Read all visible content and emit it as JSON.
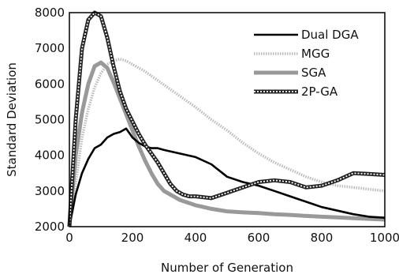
{
  "chart_data": {
    "type": "line",
    "title": "",
    "xlabel": "Number of Generation",
    "ylabel": "Standard Deviation",
    "xlim": [
      0,
      1000
    ],
    "ylim": [
      2000,
      8000
    ],
    "xticks": [
      0,
      200,
      400,
      600,
      800,
      1000
    ],
    "yticks": [
      2000,
      3000,
      4000,
      5000,
      6000,
      7000,
      8000
    ],
    "grid": false,
    "legend": "top-right",
    "series": [
      {
        "name": "Dual DGA",
        "style": "solid-black",
        "color": "#000000",
        "x": [
          0,
          20,
          40,
          60,
          80,
          100,
          120,
          140,
          160,
          180,
          200,
          220,
          240,
          260,
          280,
          300,
          350,
          400,
          450,
          500,
          550,
          600,
          650,
          700,
          750,
          800,
          850,
          900,
          950,
          1000
        ],
        "y": [
          2000,
          2900,
          3500,
          3900,
          4200,
          4300,
          4500,
          4600,
          4650,
          4750,
          4500,
          4350,
          4250,
          4200,
          4200,
          4150,
          4050,
          3950,
          3750,
          3400,
          3250,
          3150,
          3000,
          2850,
          2700,
          2550,
          2450,
          2350,
          2280,
          2250
        ]
      },
      {
        "name": "MGG",
        "style": "dotted-gray",
        "color": "#bbbbbb",
        "x": [
          0,
          20,
          40,
          60,
          80,
          100,
          120,
          140,
          160,
          180,
          200,
          240,
          280,
          320,
          360,
          400,
          450,
          500,
          550,
          600,
          650,
          700,
          750,
          800,
          850,
          900,
          950,
          1000
        ],
        "y": [
          2000,
          3200,
          4500,
          5300,
          5900,
          6300,
          6550,
          6650,
          6700,
          6650,
          6550,
          6350,
          6100,
          5850,
          5600,
          5350,
          5000,
          4700,
          4350,
          4050,
          3800,
          3600,
          3400,
          3250,
          3150,
          3100,
          3050,
          3000
        ]
      },
      {
        "name": "SGA",
        "style": "thick-gray",
        "color": "#999999",
        "x": [
          0,
          10,
          20,
          40,
          60,
          80,
          100,
          120,
          140,
          160,
          180,
          200,
          220,
          240,
          260,
          280,
          300,
          350,
          400,
          450,
          500,
          550,
          600,
          650,
          700,
          750,
          800,
          850,
          900,
          950,
          1000
        ],
        "y": [
          2000,
          3000,
          4000,
          5200,
          6000,
          6500,
          6600,
          6450,
          6050,
          5600,
          5150,
          4700,
          4250,
          3850,
          3500,
          3200,
          3000,
          2750,
          2600,
          2500,
          2430,
          2400,
          2380,
          2350,
          2330,
          2300,
          2280,
          2260,
          2240,
          2220,
          2200
        ]
      },
      {
        "name": "2P-GA",
        "style": "beaded-black",
        "color": "#222222",
        "x": [
          0,
          10,
          20,
          40,
          60,
          80,
          100,
          120,
          140,
          160,
          180,
          200,
          220,
          240,
          260,
          280,
          300,
          320,
          340,
          360,
          380,
          400,
          450,
          500,
          550,
          600,
          650,
          700,
          750,
          800,
          850,
          900,
          950,
          1000
        ],
        "y": [
          2000,
          3500,
          5000,
          7000,
          7800,
          8000,
          7900,
          7300,
          6500,
          5800,
          5300,
          4950,
          4600,
          4300,
          4050,
          3800,
          3500,
          3200,
          3000,
          2900,
          2850,
          2850,
          2800,
          2950,
          3100,
          3250,
          3300,
          3250,
          3100,
          3150,
          3300,
          3500,
          3480,
          3450
        ]
      }
    ]
  }
}
